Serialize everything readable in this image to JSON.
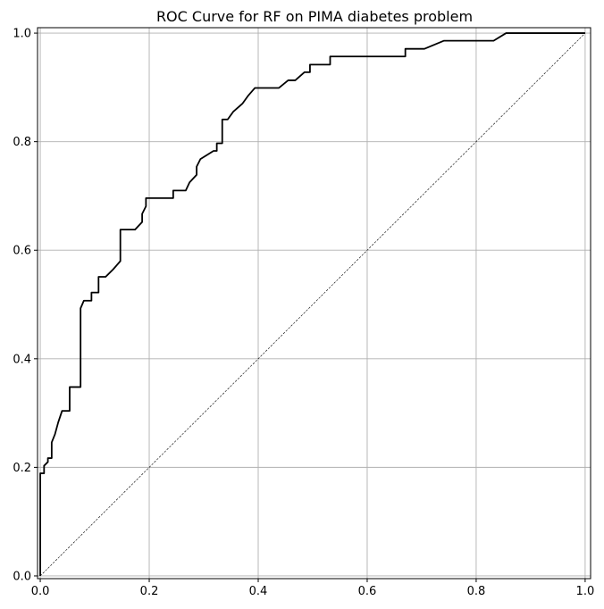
{
  "chart_data": {
    "type": "line",
    "title": "ROC Curve for RF on PIMA diabetes problem",
    "xlabel": "",
    "ylabel": "",
    "xlim": [
      -0.005,
      1.01
    ],
    "ylim": [
      -0.005,
      1.01
    ],
    "grid": true,
    "xticks": [
      0.0,
      0.2,
      0.4,
      0.6,
      0.8,
      1.0
    ],
    "yticks": [
      0.0,
      0.2,
      0.4,
      0.6,
      0.8,
      1.0
    ],
    "xtick_labels": [
      "0.0",
      "0.2",
      "0.4",
      "0.6",
      "0.8",
      "1.0"
    ],
    "ytick_labels": [
      "0.0",
      "0.2",
      "0.4",
      "0.6",
      "0.8",
      "1.0"
    ],
    "colors": {
      "roc": "#000000",
      "diagonal": "#000000",
      "grid": "#b0b0b0",
      "axes": "#000000"
    },
    "series": [
      {
        "style": "solid",
        "x": [
          0.0,
          0.0,
          0.007,
          0.007,
          0.014,
          0.014,
          0.021,
          0.021,
          0.027,
          0.027,
          0.033,
          0.04,
          0.04,
          0.054,
          0.054,
          0.06,
          0.06,
          0.074,
          0.074,
          0.08,
          0.08,
          0.094,
          0.094,
          0.107,
          0.107,
          0.107,
          0.12,
          0.12,
          0.134,
          0.147,
          0.147,
          0.167,
          0.174,
          0.187,
          0.187,
          0.194,
          0.194,
          0.244,
          0.244,
          0.267,
          0.274,
          0.274,
          0.287,
          0.287,
          0.294,
          0.318,
          0.324,
          0.324,
          0.334,
          0.334,
          0.344,
          0.354,
          0.371,
          0.381,
          0.394,
          0.438,
          0.455,
          0.468,
          0.485,
          0.492,
          0.495,
          0.495,
          0.532,
          0.532,
          0.662,
          0.67,
          0.67,
          0.705,
          0.741,
          0.832,
          0.855,
          1.0
        ],
        "y": [
          0.0,
          0.189,
          0.189,
          0.203,
          0.21,
          0.217,
          0.217,
          0.246,
          0.261,
          0.261,
          0.283,
          0.304,
          0.304,
          0.304,
          0.348,
          0.348,
          0.348,
          0.348,
          0.493,
          0.507,
          0.507,
          0.507,
          0.522,
          0.522,
          0.551,
          0.551,
          0.551,
          0.551,
          0.565,
          0.58,
          0.638,
          0.638,
          0.638,
          0.652,
          0.667,
          0.681,
          0.696,
          0.696,
          0.71,
          0.71,
          0.725,
          0.725,
          0.739,
          0.754,
          0.768,
          0.783,
          0.783,
          0.797,
          0.797,
          0.841,
          0.841,
          0.855,
          0.87,
          0.884,
          0.899,
          0.899,
          0.913,
          0.913,
          0.928,
          0.928,
          0.928,
          0.942,
          0.942,
          0.957,
          0.957,
          0.957,
          0.971,
          0.971,
          0.986,
          0.986,
          1.0,
          1.0
        ]
      },
      {
        "style": "dotted",
        "x": [
          0.0,
          1.0
        ],
        "y": [
          0.0,
          1.0
        ]
      }
    ]
  }
}
